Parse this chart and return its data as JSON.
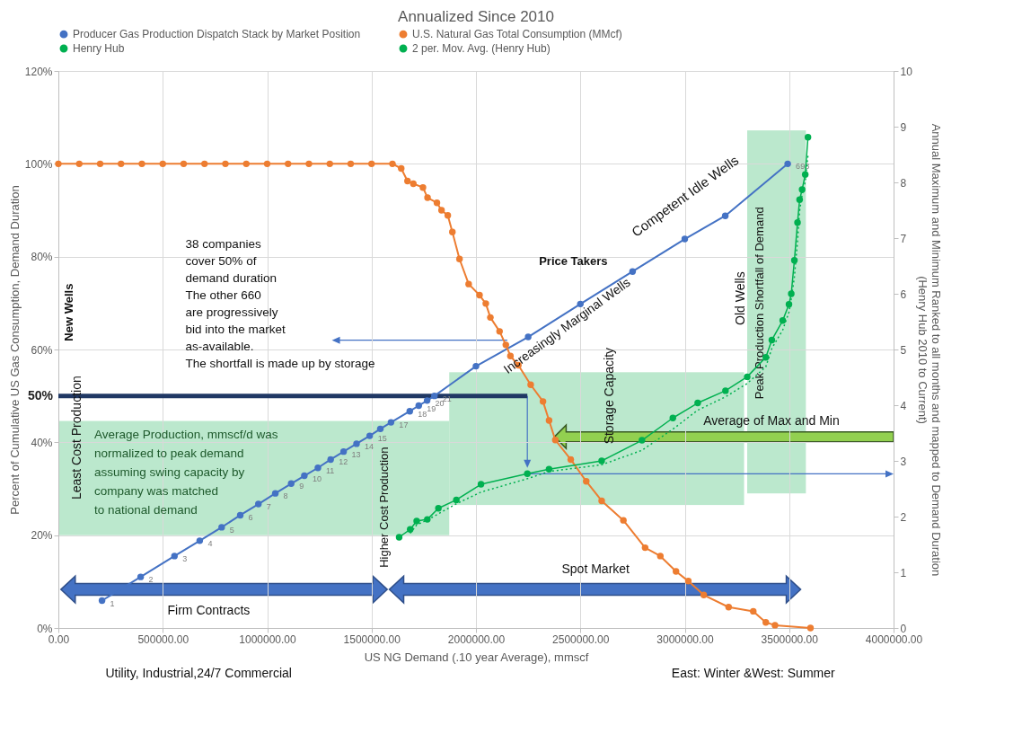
{
  "chart_data": {
    "type": "line",
    "title": "Annualized Since 2010",
    "xlabel": "US NG Demand (.10 year Average), mmscf",
    "ylabel": "Percent of Cumulative US Gas  Consumption, Demand Duration",
    "y2label": "Annual Maximum and Minimum Ranked to all months and mapped to Demand Duration\n(Henry Hub 2010 to Current)",
    "xlim": [
      0,
      4000000
    ],
    "xticks": [
      {
        "value": 0,
        "label": "0.00"
      },
      {
        "value": 500000,
        "label": "500000.00"
      },
      {
        "value": 1000000,
        "label": "1000000.00"
      },
      {
        "value": 1500000,
        "label": "1500000.00"
      },
      {
        "value": 2000000,
        "label": "2000000.00"
      },
      {
        "value": 2500000,
        "label": "2500000.00"
      },
      {
        "value": 3000000,
        "label": "3000000.00"
      },
      {
        "value": 3500000,
        "label": "3500000.00"
      },
      {
        "value": 4000000,
        "label": "4000000.00"
      }
    ],
    "ylim": [
      0,
      120
    ],
    "yticks": [
      {
        "value": 0,
        "label": "0%"
      },
      {
        "value": 20,
        "label": "20%"
      },
      {
        "value": 40,
        "label": "40%"
      },
      {
        "value": 60,
        "label": "60%"
      },
      {
        "value": 80,
        "label": "80%"
      },
      {
        "value": 100,
        "label": "100%"
      },
      {
        "value": 120,
        "label": "120%"
      }
    ],
    "y2lim": [
      0,
      10
    ],
    "y2ticks": [
      0,
      1,
      2,
      3,
      4,
      5,
      6,
      7,
      8,
      9,
      10
    ],
    "grid": true,
    "legend": "top",
    "marker": "circle",
    "line_style": "solid",
    "series": [
      {
        "name": "Producer Gas Production Dispatch Stack by Market Position",
        "color": "#4472c4",
        "x": [
          209000,
          394000,
          556000,
          677000,
          782000,
          871000,
          958000,
          1039000,
          1115000,
          1178000,
          1243000,
          1304000,
          1366000,
          1428000,
          1491000,
          1542000,
          1593000,
          1683000,
          1726000,
          1766000,
          1801000,
          2000000,
          2250000,
          2500000,
          2750000,
          3000000,
          3194000,
          3493000
        ],
        "values": [
          5.9,
          11.0,
          15.5,
          18.8,
          21.7,
          24.3,
          26.7,
          29.0,
          31.1,
          32.8,
          34.5,
          36.3,
          38.0,
          39.7,
          41.4,
          42.9,
          44.3,
          46.7,
          47.9,
          49.0,
          50.0,
          56.4,
          62.7,
          69.8,
          76.8,
          83.8,
          88.8,
          100
        ]
      },
      {
        "name": "U.S. Natural Gas Total Consumption (MMcf)",
        "color": "#ed7d31",
        "x": [
          0,
          100000,
          200000,
          300000,
          400000,
          500000,
          600000,
          700000,
          800000,
          900000,
          1000000,
          1100000,
          1200000,
          1300000,
          1400000,
          1500000,
          1600000,
          1642000,
          1672000,
          1700000,
          1746000,
          1768000,
          1813000,
          1835000,
          1865000,
          1887000,
          1921000,
          1965000,
          2017000,
          2047000,
          2069000,
          2113000,
          2143000,
          2165000,
          2203000,
          2262000,
          2321000,
          2350000,
          2380000,
          2454000,
          2528000,
          2602000,
          2706000,
          2810000,
          2883000,
          2958000,
          3017000,
          3091000,
          3210000,
          3328000,
          3388000,
          3432000,
          3602000
        ],
        "values": [
          100,
          100,
          100,
          100,
          100,
          100,
          100,
          100,
          100,
          100,
          100,
          100,
          100,
          100,
          100,
          100,
          100,
          99.0,
          96.3,
          95.7,
          94.9,
          92.7,
          91.6,
          90.0,
          88.9,
          85.3,
          79.5,
          74.1,
          71.7,
          69.9,
          66.9,
          63.9,
          61.0,
          58.6,
          56.6,
          52.4,
          48.8,
          44.7,
          40.5,
          36.3,
          31.6,
          27.4,
          23.2,
          17.3,
          15.5,
          12.2,
          10.1,
          7.1,
          4.5,
          3.6,
          1.2,
          0.6,
          0
        ]
      },
      {
        "name": "Henry Hub",
        "color": "#00b050",
        "axis": "y2",
        "x": [
          1632000,
          1685000,
          1716000,
          1767000,
          1820000,
          1906000,
          2024000,
          2246000,
          2350000,
          2602000,
          2795000,
          2943000,
          3062000,
          3195000,
          3299000,
          3388000,
          3417000,
          3469000,
          3499000,
          3510000,
          3525000,
          3540000,
          3550000,
          3562000,
          3577000,
          3590000
        ],
        "values": [
          1.63,
          1.77,
          1.92,
          1.95,
          2.15,
          2.3,
          2.58,
          2.77,
          2.85,
          3.0,
          3.37,
          3.77,
          4.04,
          4.26,
          4.51,
          4.86,
          5.17,
          5.52,
          5.81,
          6.0,
          6.6,
          7.28,
          7.69,
          7.87,
          8.14,
          8.81
        ]
      },
      {
        "name": "2 per. Mov. Avg. (Henry Hub)",
        "color": "#00b050",
        "axis": "y2",
        "marker": "none",
        "line_style": "dotted",
        "x": [
          1685000,
          1716000,
          1767000,
          1820000,
          1906000,
          2024000,
          2246000,
          2350000,
          2602000,
          2795000,
          2943000,
          3062000,
          3195000,
          3299000,
          3388000,
          3417000,
          3469000,
          3499000,
          3510000,
          3525000,
          3540000,
          3550000,
          3562000,
          3577000,
          3590000
        ],
        "values": [
          1.7,
          1.85,
          1.94,
          2.05,
          2.23,
          2.44,
          2.68,
          2.81,
          2.93,
          3.19,
          3.57,
          3.91,
          4.15,
          4.39,
          4.69,
          5.02,
          5.35,
          5.67,
          5.91,
          6.3,
          6.94,
          7.49,
          7.78,
          8.01,
          8.48
        ]
      }
    ],
    "ref_lines": [
      {
        "axis": "y",
        "value": 50,
        "label": "50%",
        "color": "#203864"
      }
    ],
    "annotations": [
      "38 companies\n cover 50% of\n demand duration\nThe other 660\nare progressively\nbid into the market\nas-available.\nThe shortfall is made up by storage",
      "New Wells",
      "Price Takers",
      "Competent Idle Wells",
      "Increasingly Marginal Wells",
      "Old Wells",
      "Peak Production Shortfall of Demand",
      "Storage Capacity",
      "Average of Max and Min",
      "Least Cost Production",
      "Average Production, mmscf/d was\nnormalized to peak demand\nassuming  swing capacity by\ncompany  was matched\nto national demand",
      "Higher  Cost Production",
      "Firm Contracts",
      "Spot Market",
      "Utility, Industrial,24/7 Commercial",
      "East: Winter &West: Summer",
      {
        "text": "1",
        "x": 209000,
        "y": 5.9
      },
      {
        "text": "2",
        "x": 394000,
        "y": 11.0
      },
      {
        "text": "3",
        "x": 556000,
        "y": 15.5
      },
      {
        "text": "4",
        "x": 677000,
        "y": 18.8
      },
      {
        "text": "5",
        "x": 782000,
        "y": 21.7
      },
      {
        "text": "6",
        "x": 871000,
        "y": 24.3
      },
      {
        "text": "7",
        "x": 958000,
        "y": 26.7
      },
      {
        "text": "8",
        "x": 1039000,
        "y": 29.0
      },
      {
        "text": "9",
        "x": 1115000,
        "y": 31.1
      },
      {
        "text": "10",
        "x": 1178000,
        "y": 32.8
      },
      {
        "text": "11",
        "x": 1243000,
        "y": 34.5
      },
      {
        "text": "12",
        "x": 1304000,
        "y": 36.3
      },
      {
        "text": "13",
        "x": 1366000,
        "y": 38.0
      },
      {
        "text": "14",
        "x": 1428000,
        "y": 39.7
      },
      {
        "text": "15",
        "x": 1491000,
        "y": 41.4
      },
      {
        "text": "17",
        "x": 1593000,
        "y": 44.3
      },
      {
        "text": "18",
        "x": 1683000,
        "y": 46.7
      },
      {
        "text": "19",
        "x": 1726000,
        "y": 47.9
      },
      {
        "text": "20",
        "x": 1766000,
        "y": 49.0
      },
      {
        "text": "21",
        "x": 1801000,
        "y": 50.0
      },
      {
        "text": "698",
        "x": 3493000,
        "y": 100
      }
    ]
  }
}
